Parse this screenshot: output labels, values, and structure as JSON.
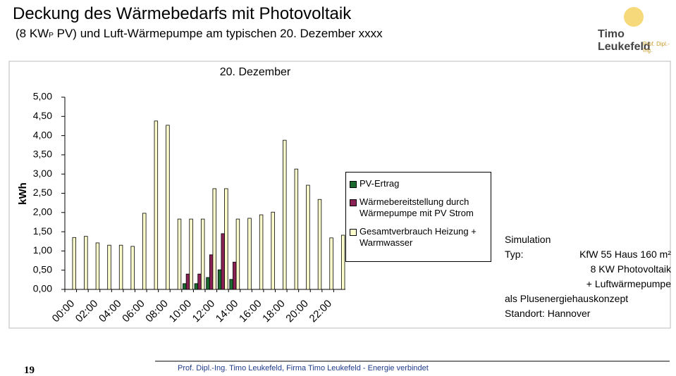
{
  "header": {
    "title": "Deckung des Wärmebedarfs mit Photovoltaik",
    "subtitle": [
      "(8 KW",
      "P",
      " PV) und Luft-Wärmepumpe am typischen 20. Dezember xxxx"
    ]
  },
  "logo": {
    "name": "Timo Leukefeld",
    "tagline": "Prof. Dipl.-Ing."
  },
  "chart_data": {
    "type": "bar",
    "title": "20. Dezember",
    "y_label": "kWh",
    "categories": [
      "00:00",
      null,
      "02:00",
      null,
      "04:00",
      null,
      "06:00",
      null,
      "08:00",
      null,
      "10:00",
      null,
      "12:00",
      null,
      "14:00",
      null,
      "16:00",
      null,
      "18:00",
      null,
      "20:00",
      null,
      "22:00",
      null
    ],
    "series": [
      {
        "name": "PV-Ertrag",
        "color": "#1b6b30",
        "values": [
          0,
          0,
          0,
          0,
          0,
          0,
          0,
          0,
          0,
          0,
          0.15,
          0.15,
          0.31,
          0.51,
          0.26,
          0,
          0,
          0,
          0,
          0,
          0,
          0,
          0,
          0
        ]
      },
      {
        "name": "Wärmebereitstellung durch Wärmepumpe mit PV Strom",
        "color": "#8b2255",
        "values": [
          0,
          0,
          0,
          0,
          0,
          0,
          0,
          0,
          0,
          0,
          0.4,
          0.4,
          0.9,
          1.45,
          0.71,
          0,
          0,
          0,
          0,
          0,
          0,
          0,
          0,
          0
        ]
      },
      {
        "name": "Gesamtverbrauch Heizung + Warmwasser",
        "color": "#ffffcc",
        "values": [
          1.35,
          1.38,
          1.21,
          1.15,
          1.15,
          1.12,
          1.98,
          4.38,
          4.27,
          1.83,
          1.83,
          1.83,
          2.62,
          2.62,
          1.83,
          1.85,
          1.94,
          2.01,
          3.88,
          3.13,
          2.71,
          2.34,
          1.34,
          1.41
        ]
      }
    ],
    "ylim": [
      0,
      5
    ],
    "yticks": [
      {
        "value": 0,
        "label": "0,00"
      },
      {
        "value": 0.5,
        "label": "0,50"
      },
      {
        "value": 1,
        "label": "1,00"
      },
      {
        "value": 1.5,
        "label": "1,50"
      },
      {
        "value": 2,
        "label": "2,00"
      },
      {
        "value": 2.5,
        "label": "2,50"
      },
      {
        "value": 3,
        "label": "3,00"
      },
      {
        "value": 3.5,
        "label": "3,50"
      },
      {
        "value": 4,
        "label": "4,00"
      },
      {
        "value": 4.5,
        "label": "4,50"
      },
      {
        "value": 5,
        "label": "5,00"
      }
    ],
    "legend": "right"
  },
  "notes": {
    "heading": "Simulation",
    "type_label": "Typ:",
    "type_value": "KfW 55 Haus 160 m²",
    "lines": [
      "8 KW Photovoltaik",
      "+ Luftwärmepumpe"
    ],
    "concept": "als Plusenergiehauskonzept",
    "location": "Standort: Hannover"
  },
  "footer": {
    "page": "19",
    "text": "Prof. Dipl.-Ing. Timo Leukefeld, Firma Timo Leukefeld - Energie verbindet"
  }
}
